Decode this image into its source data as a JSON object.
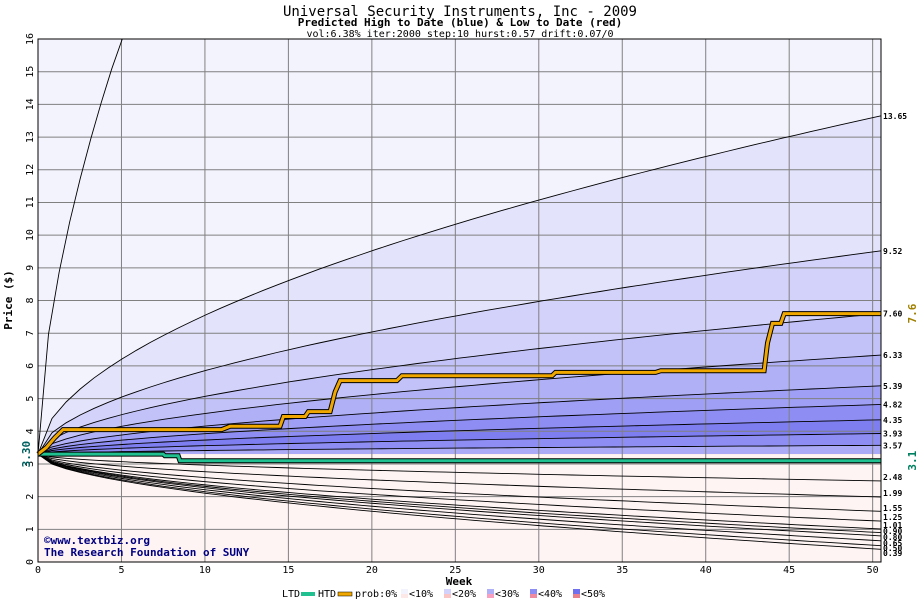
{
  "chart_data": {
    "type": "area",
    "title": "Universal Security Instruments, Inc - 2009",
    "subtitle": "Predicted High to Date (blue) &  Low to Date (red)",
    "params": "vol:6.38% iter:2000 step:10 hurst:0.57 drift:0.07/0",
    "xlabel": "Week",
    "ylabel": "Price ($)",
    "xlim": [
      0,
      50.5
    ],
    "ylim": [
      0,
      16
    ],
    "x_ticks": [
      0,
      5,
      10,
      15,
      20,
      25,
      30,
      35,
      40,
      45,
      50
    ],
    "y_ticks": [
      0,
      1,
      2,
      3,
      4,
      5,
      6,
      7,
      8,
      9,
      10,
      11,
      12,
      13,
      14,
      15,
      16
    ],
    "grid": true,
    "start_price": 3.3,
    "start_price_label": "3.30",
    "htd_end_value": 7.6,
    "htd_end_label": "7.6",
    "ltd_end_value": 3.1,
    "ltd_end_label": "3.1",
    "high_quantiles": [
      {
        "end": 16.0,
        "label": "",
        "fill": "#f3f3fe"
      },
      {
        "end": 13.65,
        "label": "13.65",
        "fill": "#e3e3fc"
      },
      {
        "end": 9.52,
        "label": "9.52",
        "fill": "#d2d2fb"
      },
      {
        "end": 7.6,
        "label": "7.60",
        "fill": "#c2c2f9"
      },
      {
        "end": 6.33,
        "label": "6.33",
        "fill": "#b0b0f7"
      },
      {
        "end": 5.39,
        "label": "5.39",
        "fill": "#9f9ff5"
      },
      {
        "end": 4.82,
        "label": "4.82",
        "fill": "#8d8df3"
      },
      {
        "end": 4.35,
        "label": "4.35",
        "fill": "#7e7ef1"
      },
      {
        "end": 3.93,
        "label": "3.93",
        "fill": "#8d8df3"
      },
      {
        "end": 3.57,
        "label": "3.57",
        "fill": "#aaaaf6"
      }
    ],
    "low_quantiles": [
      {
        "end": 2.48,
        "label": "2.48",
        "fill": "#fde8e8"
      },
      {
        "end": 1.99,
        "label": "1.99",
        "fill": "#fcd6d6"
      },
      {
        "end": 1.55,
        "label": "1.55",
        "fill": "#fbc4c4"
      },
      {
        "end": 1.25,
        "label": "1.25",
        "fill": "#faaeae"
      },
      {
        "end": 1.01,
        "label": "1.01",
        "fill": "#f99a9a"
      },
      {
        "end": 0.9,
        "label": "0.90",
        "fill": "#f88686"
      },
      {
        "end": 0.8,
        "label": "0.80",
        "fill": "#f99a9a"
      },
      {
        "end": 0.65,
        "label": "0.65",
        "fill": "#faaeae"
      },
      {
        "end": 0.5,
        "label": "0.50",
        "fill": "#fcd6d6"
      },
      {
        "end": 0.39,
        "label": "0.39",
        "fill": "#fef4f4"
      }
    ],
    "htd_path": [
      [
        0,
        3.3
      ],
      [
        0.5,
        3.5
      ],
      [
        1,
        3.8
      ],
      [
        1.5,
        4.05
      ],
      [
        2,
        4.05
      ],
      [
        11,
        4.05
      ],
      [
        11.5,
        4.15
      ],
      [
        14.5,
        4.15
      ],
      [
        14.7,
        4.45
      ],
      [
        16,
        4.45
      ],
      [
        16.2,
        4.6
      ],
      [
        17.5,
        4.6
      ],
      [
        17.8,
        5.2
      ],
      [
        18.1,
        5.55
      ],
      [
        21.5,
        5.55
      ],
      [
        21.8,
        5.7
      ],
      [
        30.8,
        5.7
      ],
      [
        31,
        5.8
      ],
      [
        37,
        5.8
      ],
      [
        37.3,
        5.85
      ],
      [
        43.5,
        5.85
      ],
      [
        43.7,
        6.7
      ],
      [
        44,
        7.3
      ],
      [
        44.5,
        7.3
      ],
      [
        44.7,
        7.6
      ],
      [
        50.5,
        7.6
      ]
    ],
    "ltd_path": [
      [
        0,
        3.3
      ],
      [
        2,
        3.3
      ],
      [
        7.5,
        3.3
      ],
      [
        7.6,
        3.25
      ],
      [
        8.4,
        3.25
      ],
      [
        8.5,
        3.1
      ],
      [
        50.5,
        3.1
      ]
    ],
    "legend": {
      "ltd": "LTD",
      "htd": "HTD",
      "prob": "prob:0%",
      "items": [
        "<10%",
        "<20%",
        "<30%",
        "<40%",
        "<50%"
      ],
      "colors": [
        "#fde8e8",
        "#fbc4c4",
        "#f7a0c0",
        "#f08aa0",
        "#e8808c"
      ],
      "colors_blue": [
        "#f3f3fe",
        "#d2d2fb",
        "#b0b0f7",
        "#8d8df3",
        "#7070ee"
      ]
    },
    "colors": {
      "htd": "#f0a800",
      "ltd": "#20c090",
      "grid": "#808080",
      "fan_line": "#000000"
    }
  },
  "watermark": {
    "line1": "©www.textbiz.org",
    "line2": "The Research Foundation of SUNY"
  }
}
